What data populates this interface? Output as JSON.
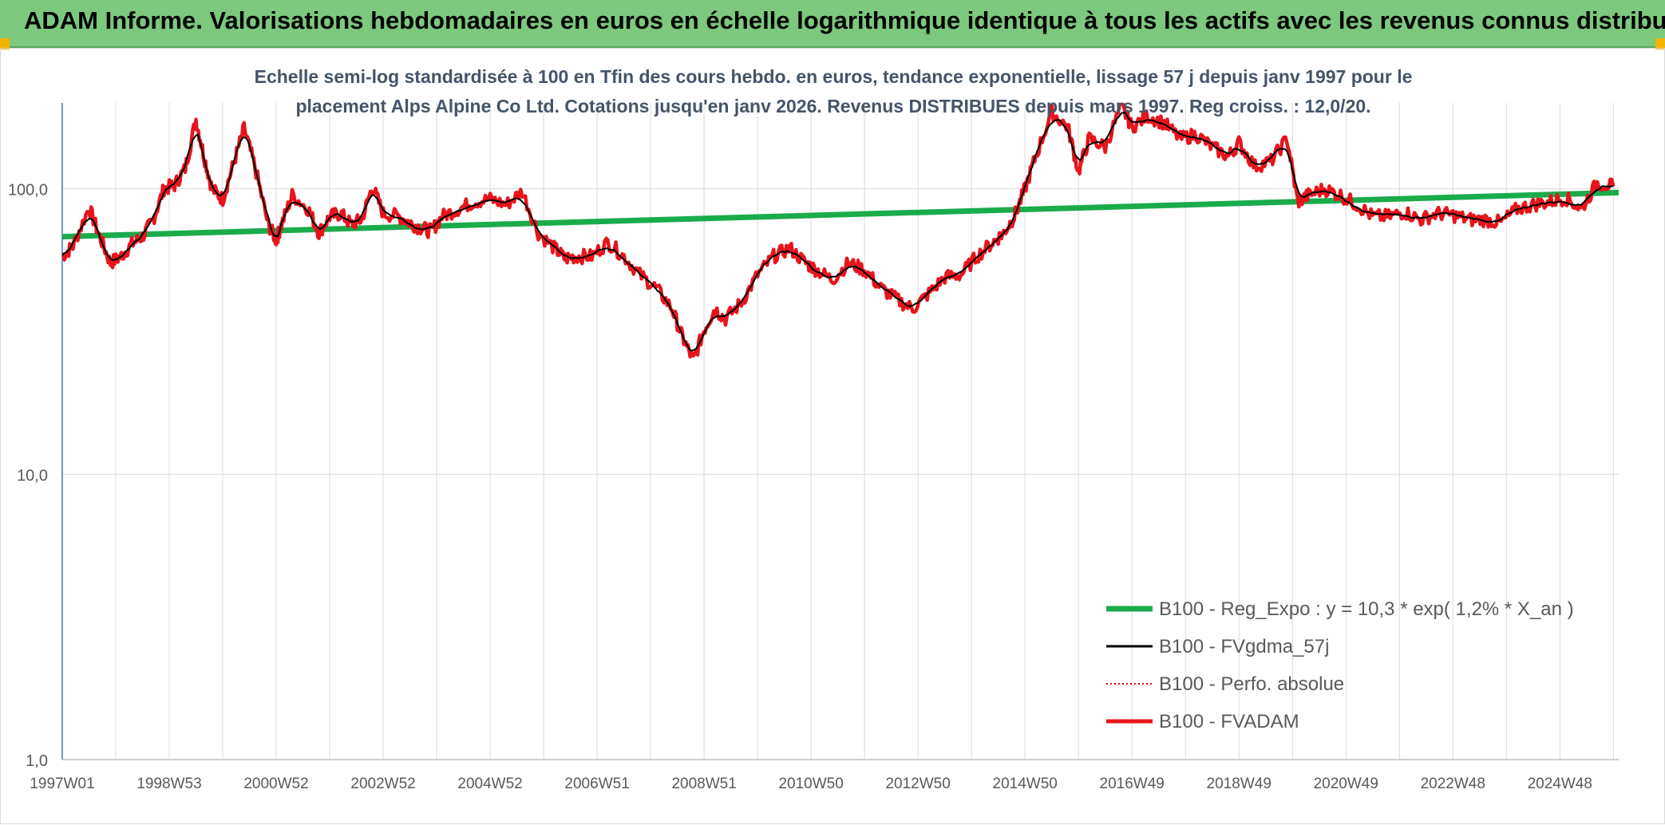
{
  "banner": {
    "title": "ADAM Informe. Valorisations hebdomadaires en euros en échelle logarithmique identique à tous les actifs avec les revenus connus distribués"
  },
  "chart_data": {
    "type": "line",
    "title_lines": [
      "Echelle semi-log standardisée à 100 en Tfin des cours hebdo. en euros, tendance exponentielle, lissage 57 j depuis janv 1997 pour le",
      "placement Alps Alpine Co Ltd. Cotations jusqu'en janv 2026. Revenus DISTRIBUES depuis mars 1997. Reg croiss. : 12,0/20."
    ],
    "y_scale": "log",
    "ylim": [
      1,
      200
    ],
    "y_ticks": [
      {
        "value": 1,
        "label": "1,0"
      },
      {
        "value": 10,
        "label": "10,0"
      },
      {
        "value": 100,
        "label": "100,0"
      }
    ],
    "xlim": [
      1997.0,
      2026.1
    ],
    "x_ticks": [
      {
        "x": 1997.0,
        "label": "1997W01"
      },
      {
        "x": 1999.0,
        "label": "1998W53"
      },
      {
        "x": 2001.0,
        "label": "2000W52"
      },
      {
        "x": 2003.0,
        "label": "2002W52"
      },
      {
        "x": 2005.0,
        "label": "2004W52"
      },
      {
        "x": 2007.0,
        "label": "2006W51"
      },
      {
        "x": 2009.0,
        "label": "2008W51"
      },
      {
        "x": 2011.0,
        "label": "2010W50"
      },
      {
        "x": 2013.0,
        "label": "2012W50"
      },
      {
        "x": 2015.0,
        "label": "2014W50"
      },
      {
        "x": 2017.0,
        "label": "2016W49"
      },
      {
        "x": 2019.0,
        "label": "2018W49"
      },
      {
        "x": 2021.0,
        "label": "2020W49"
      },
      {
        "x": 2023.0,
        "label": "2022W48"
      },
      {
        "x": 2025.0,
        "label": "2024W48"
      }
    ],
    "grid": true,
    "legend_position": "bottom-right",
    "series": [
      {
        "name": "B100 - Reg_Expo : y = 10,3 * exp( 1,2% *  X_an )",
        "color": "#1aab4b",
        "style": "solid",
        "kind": "trend",
        "y_start": 68,
        "y_end": 97
      },
      {
        "name": "B100 - FVgdma_57j",
        "color": "#000000",
        "style": "solid",
        "kind": "smooth"
      },
      {
        "name": "B100 - Perfo. absolue",
        "color": "#e00000",
        "style": "dotted",
        "kind": "legend-only"
      },
      {
        "name": "B100 - FVADAM",
        "color": "#e8141b",
        "style": "solid",
        "kind": "main"
      }
    ],
    "fvadam": {
      "x": [
        1997.0,
        1997.2,
        1997.5,
        1997.7,
        1997.9,
        1998.1,
        1998.3,
        1998.5,
        1998.7,
        1998.9,
        1999.1,
        1999.3,
        1999.5,
        1999.65,
        1999.8,
        2000.0,
        2000.2,
        2000.4,
        2000.6,
        2000.85,
        2001.0,
        2001.1,
        2001.3,
        2001.6,
        2001.8,
        2002.0,
        2002.2,
        2002.4,
        2002.6,
        2002.8,
        2003.0,
        2003.3,
        2003.5,
        2003.7,
        2003.9,
        2004.1,
        2004.4,
        2004.7,
        2005.0,
        2005.3,
        2005.6,
        2005.9,
        2006.2,
        2006.4,
        2006.6,
        2006.9,
        2007.2,
        2007.5,
        2007.8,
        2008.1,
        2008.4,
        2008.6,
        2008.8,
        2009.0,
        2009.2,
        2009.4,
        2009.7,
        2010.0,
        2010.3,
        2010.6,
        2010.9,
        2011.1,
        2011.4,
        2011.7,
        2012.0,
        2012.3,
        2012.6,
        2012.9,
        2013.2,
        2013.5,
        2013.8,
        2014.1,
        2014.4,
        2014.6,
        2014.8,
        2015.0,
        2015.2,
        2015.5,
        2015.8,
        2016.0,
        2016.2,
        2016.5,
        2016.8,
        2017.0,
        2017.3,
        2017.6,
        2017.9,
        2018.2,
        2018.5,
        2018.8,
        2019.0,
        2019.3,
        2019.6,
        2019.9,
        2020.1,
        2020.3,
        2020.6,
        2020.9,
        2021.2,
        2021.5,
        2021.8,
        2022.1,
        2022.4,
        2022.7,
        2023.0,
        2023.3,
        2023.6,
        2023.9,
        2024.2,
        2024.5,
        2024.8,
        2025.1,
        2025.4,
        2025.7,
        2026.0
      ],
      "y": [
        58,
        63,
        86,
        68,
        55,
        58,
        64,
        68,
        78,
        100,
        103,
        118,
        175,
        130,
        100,
        92,
        122,
        163,
        120,
        75,
        66,
        75,
        95,
        85,
        70,
        80,
        82,
        75,
        78,
        102,
        82,
        80,
        76,
        73,
        71,
        80,
        85,
        90,
        92,
        88,
        98,
        70,
        62,
        57,
        58,
        58,
        65,
        58,
        50,
        45,
        38,
        30,
        25,
        32,
        38,
        35,
        40,
        50,
        58,
        62,
        55,
        52,
        48,
        55,
        52,
        45,
        41,
        38,
        43,
        49,
        50,
        58,
        65,
        70,
        80,
        100,
        130,
        185,
        165,
        115,
        150,
        140,
        195,
        165,
        180,
        170,
        150,
        155,
        140,
        130,
        145,
        120,
        125,
        150,
        90,
        95,
        100,
        95,
        88,
        80,
        80,
        83,
        78,
        82,
        81,
        78,
        78,
        76,
        85,
        88,
        90,
        93,
        85,
        105,
        102
      ]
    }
  }
}
